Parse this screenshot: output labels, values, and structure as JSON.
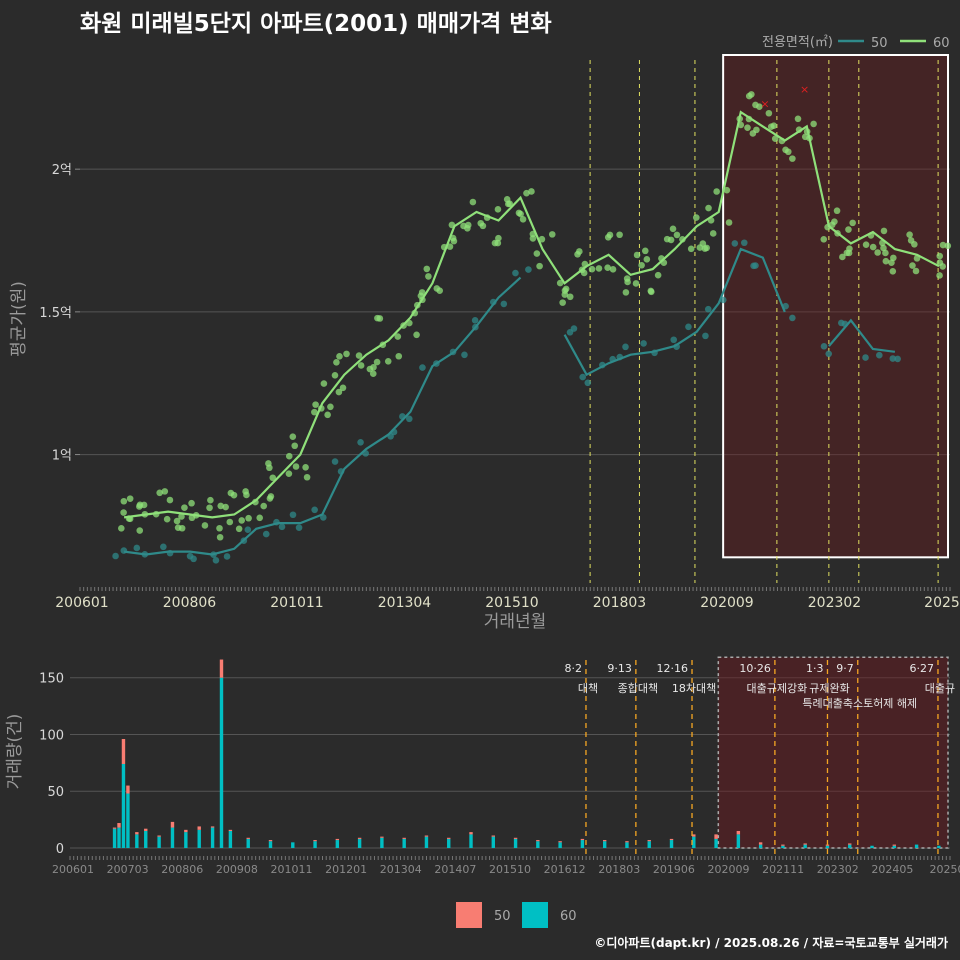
{
  "title": "화원 미래빌5단지 아파트(2001) 매매가격 변화",
  "footer": "©디아파트(dapt.kr) / 2025.08.26 / 자료=국토교통부 실거래가",
  "chart_data": [
    {
      "type": "line",
      "xlabel": "거래년월",
      "ylabel": "평균가(원)",
      "x_ticks": [
        "200601",
        "200806",
        "201011",
        "201304",
        "201510",
        "201803",
        "202009",
        "202302",
        "2025"
      ],
      "y_ticks": [
        {
          "value": 1.0,
          "label": "1억"
        },
        {
          "value": 1.5,
          "label": "1.5억"
        },
        {
          "value": 2.0,
          "label": "2억"
        }
      ],
      "ylim": [
        0.55,
        2.4
      ],
      "xlim": [
        2006.0,
        2025.75
      ],
      "legend_title": "전용면적(㎡)",
      "legend_position": "top-right",
      "colors": {
        "50": "#2f8a8a",
        "60": "#8fe07a",
        "policy_line": "#e0e060",
        "highlight_box": "#ffffff",
        "marker": "#e02020"
      },
      "highlight_box": {
        "x": [
          2020.6,
          2025.75
        ],
        "y": [
          0.64,
          2.4
        ]
      },
      "policy_lines": [
        2017.58,
        2018.7,
        2019.96,
        2021.82,
        2023.0,
        2023.68,
        2025.48
      ],
      "series": [
        {
          "name": "50",
          "x": [
            2007.0,
            2007.5,
            2008.0,
            2008.5,
            2009.0,
            2009.5,
            2010.0,
            2010.5,
            2011.0,
            2011.5,
            2012.0,
            2012.5,
            2013.0,
            2013.5,
            2014.0,
            2014.5,
            2015.0,
            2015.5,
            2016.0,
            2016.5,
            2017.0,
            2017.5,
            2018.0,
            2018.5,
            2019.0,
            2019.5,
            2020.0,
            2020.5,
            2021.0,
            2021.5,
            2022.0,
            2022.5,
            2023.0,
            2023.5,
            2024.0,
            2024.5
          ],
          "values": [
            0.66,
            0.65,
            0.66,
            0.66,
            0.65,
            0.67,
            0.74,
            0.76,
            0.76,
            0.79,
            0.95,
            1.02,
            1.07,
            1.15,
            1.31,
            1.36,
            1.45,
            1.55,
            1.62,
            null,
            1.42,
            1.28,
            1.32,
            1.35,
            1.36,
            1.38,
            1.43,
            1.53,
            1.72,
            1.69,
            1.5,
            null,
            1.38,
            1.47,
            1.37,
            1.36
          ]
        },
        {
          "name": "60",
          "x": [
            2007.0,
            2007.5,
            2008.0,
            2008.5,
            2009.0,
            2009.5,
            2010.0,
            2010.5,
            2011.0,
            2011.5,
            2012.0,
            2012.5,
            2013.0,
            2013.5,
            2014.0,
            2014.5,
            2015.0,
            2015.5,
            2016.0,
            2016.5,
            2017.0,
            2017.5,
            2018.0,
            2018.5,
            2019.0,
            2019.5,
            2020.0,
            2020.5,
            2021.0,
            2021.5,
            2022.0,
            2022.5,
            2023.0,
            2023.5,
            2024.0,
            2024.5,
            2025.0,
            2025.5
          ],
          "values": [
            0.78,
            0.79,
            0.8,
            0.79,
            0.78,
            0.79,
            0.84,
            0.92,
            1.0,
            1.18,
            1.28,
            1.35,
            1.4,
            1.48,
            1.6,
            1.8,
            1.85,
            1.82,
            1.9,
            1.72,
            1.6,
            1.66,
            1.7,
            1.63,
            1.65,
            1.72,
            1.8,
            1.85,
            2.2,
            2.15,
            2.1,
            2.15,
            1.8,
            1.74,
            1.78,
            1.72,
            1.7,
            1.66
          ]
        }
      ]
    },
    {
      "type": "bar",
      "ylabel": "거래량(건)",
      "x_ticks": [
        "200601",
        "200703",
        "200806",
        "200908",
        "201011",
        "201201",
        "201304",
        "201407",
        "201510",
        "201612",
        "201803",
        "201906",
        "202009",
        "202111",
        "202302",
        "202405",
        "20250"
      ],
      "y_ticks": [
        0,
        50,
        100,
        150
      ],
      "ylim": [
        0,
        170
      ],
      "xlim": [
        2006.0,
        2025.75
      ],
      "legend_position": "bottom",
      "colors": {
        "50": "#f87d72",
        "60": "#00bfc4",
        "policy_line": "#f5a623"
      },
      "highlight_box": {
        "x": [
          2020.55,
          2025.75
        ],
        "y": [
          0,
          168
        ]
      },
      "x": [
        2007.0,
        2007.1,
        2007.2,
        2007.3,
        2007.5,
        2007.7,
        2008.0,
        2008.3,
        2008.6,
        2008.9,
        2009.2,
        2009.4,
        2009.6,
        2010.0,
        2010.5,
        2011.0,
        2011.5,
        2012.0,
        2012.5,
        2013.0,
        2013.5,
        2014.0,
        2014.5,
        2015.0,
        2015.5,
        2016.0,
        2016.5,
        2017.0,
        2017.5,
        2018.0,
        2018.5,
        2019.0,
        2019.5,
        2020.0,
        2020.5,
        2021.0,
        2021.5,
        2022.0,
        2022.5,
        2023.0,
        2023.5,
        2024.0,
        2024.5,
        2025.0,
        2025.5
      ],
      "series": [
        {
          "name": "50",
          "values": [
            1,
            4,
            22,
            7,
            2,
            2,
            1,
            5,
            2,
            3,
            1,
            16,
            1,
            1,
            1,
            0,
            1,
            1,
            1,
            1,
            1,
            1,
            1,
            2,
            1,
            1,
            1,
            1,
            1,
            1,
            1,
            1,
            1,
            2,
            4,
            3,
            2,
            1,
            1,
            1,
            1,
            0,
            1,
            0,
            0
          ]
        },
        {
          "name": "60",
          "values": [
            17,
            18,
            74,
            48,
            12,
            15,
            10,
            18,
            14,
            16,
            18,
            150,
            15,
            8,
            6,
            5,
            6,
            7,
            8,
            9,
            8,
            10,
            8,
            12,
            10,
            8,
            6,
            5,
            7,
            6,
            5,
            6,
            7,
            10,
            8,
            12,
            3,
            2,
            3,
            2,
            3,
            2,
            2,
            3,
            2
          ]
        }
      ],
      "annotations": [
        {
          "date": "8·2",
          "label": "대책",
          "x": 2017.58
        },
        {
          "date": "9·13",
          "label": "종합대책",
          "x": 2018.7
        },
        {
          "date": "12·16",
          "label": "18차대책",
          "x": 2019.96
        },
        {
          "date": "10·26",
          "label": "대출규제강화",
          "x": 2021.82
        },
        {
          "date": "1·3",
          "label": "규제완화",
          "x": 2023.0
        },
        {
          "date": "9·7",
          "label": "특례대출축소토허제 해제",
          "x": 2023.68
        },
        {
          "date": "6·27",
          "label": "대출규",
          "x": 2025.48
        }
      ]
    }
  ]
}
